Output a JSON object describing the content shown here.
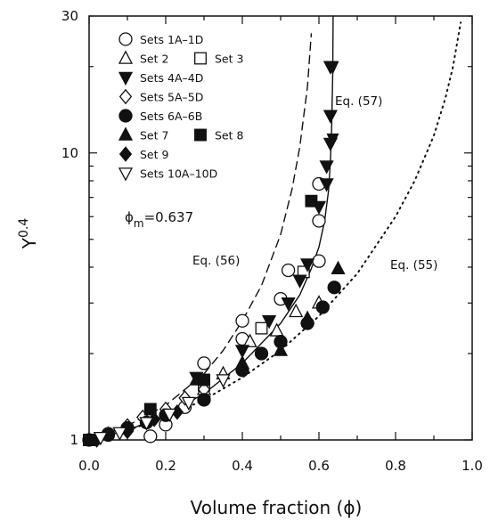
{
  "chart_data": {
    "type": "scatter",
    "xlabel": "Volume fraction (ϕ)",
    "ylabel": "Y",
    "ylabel_superscript": "0.4",
    "xlim": [
      0.0,
      1.0
    ],
    "ylim": [
      1,
      30
    ],
    "yscale": "log",
    "x_ticks": [
      "0.0",
      "0.2",
      "0.4",
      "0.6",
      "0.8",
      "1.0"
    ],
    "y_ticks": [
      "1",
      "10",
      "30"
    ],
    "phi_annotation": {
      "symbol": "ϕ",
      "sub": "m",
      "value": "=0.637"
    },
    "legend": [
      {
        "label": "Sets 1A–1D",
        "marker": "open-circle"
      },
      {
        "label": "Set 2",
        "marker": "open-triangle-up"
      },
      {
        "label": "Set 3",
        "marker": "open-square"
      },
      {
        "label": "Sets 4A–4D",
        "marker": "filled-triangle-down"
      },
      {
        "label": "Sets 5A–5D",
        "marker": "open-diamond"
      },
      {
        "label": "Sets 6A–6B",
        "marker": "filled-circle"
      },
      {
        "label": "Set 7",
        "marker": "filled-triangle-up"
      },
      {
        "label": "Set 8",
        "marker": "filled-square"
      },
      {
        "label": "Set 9",
        "marker": "filled-diamond"
      },
      {
        "label": "Sets 10A–10D",
        "marker": "open-triangle-down"
      }
    ],
    "curves": [
      {
        "label": "Eq. (55)",
        "style": "dotted",
        "x": [
          0.0,
          0.1,
          0.2,
          0.3,
          0.4,
          0.5,
          0.6,
          0.7,
          0.8,
          0.85,
          0.9,
          0.93,
          0.95,
          0.97
        ],
        "y": [
          1.0,
          1.08,
          1.2,
          1.38,
          1.65,
          2.05,
          2.7,
          3.8,
          6.0,
          8.0,
          11.5,
          15.5,
          20.0,
          28.5
        ]
      },
      {
        "label": "Eq. (56)",
        "style": "dashed",
        "x": [
          0.0,
          0.1,
          0.2,
          0.3,
          0.35,
          0.4,
          0.45,
          0.5,
          0.53,
          0.55,
          0.57,
          0.58
        ],
        "y": [
          1.0,
          1.12,
          1.32,
          1.7,
          2.05,
          2.6,
          3.45,
          5.2,
          7.5,
          10.5,
          17.0,
          26.0
        ]
      },
      {
        "label": "Eq. (57)",
        "style": "solid",
        "x": [
          0.0,
          0.1,
          0.2,
          0.3,
          0.4,
          0.5,
          0.55,
          0.58,
          0.6,
          0.615,
          0.625,
          0.63,
          0.633,
          0.636,
          0.637
        ],
        "y": [
          1.0,
          1.08,
          1.22,
          1.45,
          1.85,
          2.55,
          3.2,
          3.95,
          4.7,
          5.8,
          7.4,
          9.4,
          12.0,
          19.0,
          30.0
        ]
      }
    ],
    "series": [
      {
        "name": "Sets 1A–1D",
        "marker": "open-circle",
        "points": [
          [
            0.0,
            1.0
          ],
          [
            0.05,
            1.05
          ],
          [
            0.1,
            1.1
          ],
          [
            0.16,
            1.03
          ],
          [
            0.2,
            1.13
          ],
          [
            0.25,
            1.3
          ],
          [
            0.3,
            1.85
          ],
          [
            0.4,
            2.6
          ],
          [
            0.4,
            2.25
          ],
          [
            0.5,
            3.1
          ],
          [
            0.52,
            3.9
          ],
          [
            0.6,
            4.2
          ],
          [
            0.6,
            5.8
          ],
          [
            0.6,
            7.8
          ]
        ]
      },
      {
        "name": "Set 2",
        "marker": "open-triangle-up",
        "points": [
          [
            0.3,
            1.5
          ],
          [
            0.35,
            1.7
          ],
          [
            0.42,
            2.2
          ],
          [
            0.49,
            2.4
          ],
          [
            0.54,
            2.8
          ],
          [
            0.6,
            3.0
          ]
        ]
      },
      {
        "name": "Set 3",
        "marker": "open-square",
        "points": [
          [
            0.3,
            1.55
          ],
          [
            0.45,
            2.45
          ],
          [
            0.56,
            3.85
          ]
        ]
      },
      {
        "name": "Sets 4A–4D",
        "marker": "filled-triangle-down",
        "points": [
          [
            0.28,
            1.65
          ],
          [
            0.4,
            2.05
          ],
          [
            0.47,
            2.6
          ],
          [
            0.52,
            3.0
          ],
          [
            0.55,
            3.6
          ],
          [
            0.57,
            4.1
          ],
          [
            0.6,
            6.5
          ],
          [
            0.62,
            7.8
          ],
          [
            0.62,
            9.0
          ],
          [
            0.63,
            10.8
          ],
          [
            0.63,
            13.5
          ],
          [
            0.63,
            20.0
          ]
        ]
      },
      {
        "name": "Sets 5A–5D",
        "marker": "open-diamond",
        "points": [
          [
            0.05,
            1.05
          ],
          [
            0.1,
            1.12
          ],
          [
            0.14,
            1.2
          ],
          [
            0.2,
            1.28
          ],
          [
            0.25,
            1.4
          ],
          [
            0.3,
            1.5
          ]
        ]
      },
      {
        "name": "Sets 6A–6B",
        "marker": "filled-circle",
        "points": [
          [
            0.05,
            1.04
          ],
          [
            0.1,
            1.1
          ],
          [
            0.15,
            1.15
          ],
          [
            0.2,
            1.22
          ],
          [
            0.3,
            1.38
          ],
          [
            0.4,
            1.75
          ],
          [
            0.45,
            2.0
          ],
          [
            0.5,
            2.2
          ],
          [
            0.57,
            2.55
          ],
          [
            0.61,
            2.9
          ],
          [
            0.64,
            3.4
          ]
        ]
      },
      {
        "name": "Set 7",
        "marker": "filled-triangle-up",
        "points": [
          [
            0.28,
            1.62
          ],
          [
            0.4,
            1.85
          ],
          [
            0.5,
            2.05
          ],
          [
            0.57,
            2.65
          ],
          [
            0.65,
            3.95
          ]
        ]
      },
      {
        "name": "Set 8",
        "marker": "filled-square",
        "points": [
          [
            0.0,
            1.0
          ],
          [
            0.16,
            1.28
          ],
          [
            0.3,
            1.62
          ],
          [
            0.58,
            6.8
          ]
        ]
      },
      {
        "name": "Set 9",
        "marker": "filled-diamond",
        "points": [
          [
            0.02,
            1.0
          ],
          [
            0.1,
            1.07
          ],
          [
            0.17,
            1.18
          ],
          [
            0.23,
            1.25
          ]
        ]
      },
      {
        "name": "Sets 10A–10D",
        "marker": "open-triangle-down",
        "points": [
          [
            0.03,
            1.02
          ],
          [
            0.08,
            1.06
          ],
          [
            0.15,
            1.15
          ],
          [
            0.21,
            1.23
          ],
          [
            0.26,
            1.35
          ],
          [
            0.35,
            1.62
          ]
        ]
      }
    ]
  }
}
